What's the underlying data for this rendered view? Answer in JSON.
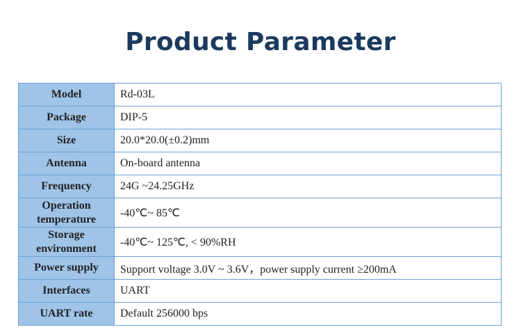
{
  "title": "Product Parameter",
  "rows": [
    {
      "label": "Model",
      "value": "Rd-03L"
    },
    {
      "label": "Package",
      "value": "DIP-5"
    },
    {
      "label": "Size",
      "value": "20.0*20.0(±0.2)mm"
    },
    {
      "label": "Antenna",
      "value": "On-board antenna"
    },
    {
      "label": "Frequency",
      "value": "24G ~24.25GHz"
    },
    {
      "label": "Operation temperature",
      "value": "-40℃~ 85℃"
    },
    {
      "label": "Storage environment",
      "value": "-40℃~ 125℃, < 90%RH"
    },
    {
      "label": "Power supply",
      "value": "Support voltage 3.0V ~ 3.6V，power supply current  ≥200mA"
    },
    {
      "label": "Interfaces",
      "value": "UART"
    },
    {
      "label": "UART rate",
      "value": "Default 256000 bps"
    }
  ]
}
